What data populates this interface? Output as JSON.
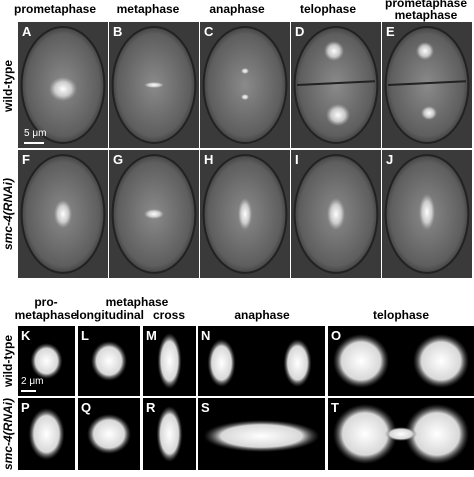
{
  "top": {
    "column_headers": [
      "prometaphase",
      "metaphase",
      "anaphase",
      "telophase",
      [
        "prometaphase",
        "metaphase"
      ]
    ],
    "row_labels": [
      "wild-type",
      "smc-4(RNAi)"
    ],
    "panels": [
      "A",
      "B",
      "C",
      "D",
      "E",
      "F",
      "G",
      "H",
      "I",
      "J"
    ],
    "scale_bar": "5 μm"
  },
  "bottom": {
    "column_headers": {
      "prometaphase": [
        "pro-",
        "metaphase"
      ],
      "metaphase": "metaphase",
      "longitudinal": "longitudinal",
      "cross": "cross",
      "anaphase": "anaphase",
      "telophase": "telophase"
    },
    "row_labels": [
      "wild-type",
      "smc-4(RNAi)"
    ],
    "panels": [
      "K",
      "L",
      "M",
      "N",
      "O",
      "P",
      "Q",
      "R",
      "S",
      "T"
    ],
    "scale_bar": "2 μm"
  }
}
